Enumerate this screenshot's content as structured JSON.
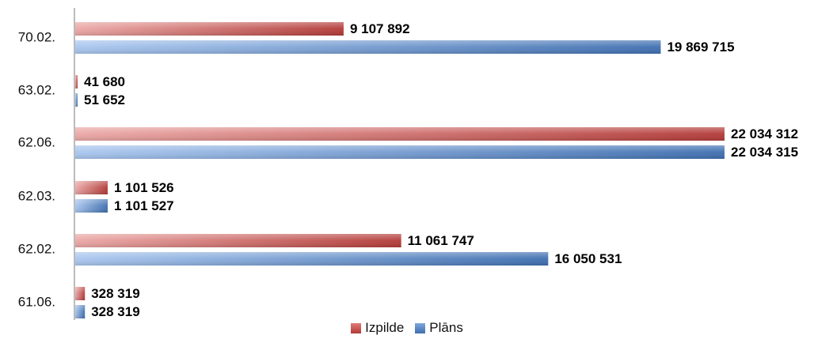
{
  "chart_data": {
    "type": "bar",
    "orientation": "horizontal",
    "categories": [
      "70.02.",
      "63.02.",
      "62.06.",
      "62.03.",
      "62.02.",
      "61.06."
    ],
    "series": [
      {
        "name": "Izpilde",
        "color": "#c0504d",
        "values": [
          9107892,
          41680,
          22034312,
          1101526,
          11061747,
          328319
        ],
        "labels": [
          "9 107 892",
          "41 680",
          "22 034 312",
          "1 101 526",
          "11 061 747",
          "328 319"
        ]
      },
      {
        "name": "Plāns",
        "color": "#4f81bd",
        "values": [
          19869715,
          51652,
          22034315,
          1101527,
          16050531,
          328319
        ],
        "labels": [
          "19 869 715",
          "51 652",
          "22 034 315",
          "1 101 527",
          "16 050 531",
          "328 319"
        ]
      }
    ],
    "xlim": [
      0,
      22034315
    ],
    "legend_position": "bottom",
    "grid": false
  }
}
